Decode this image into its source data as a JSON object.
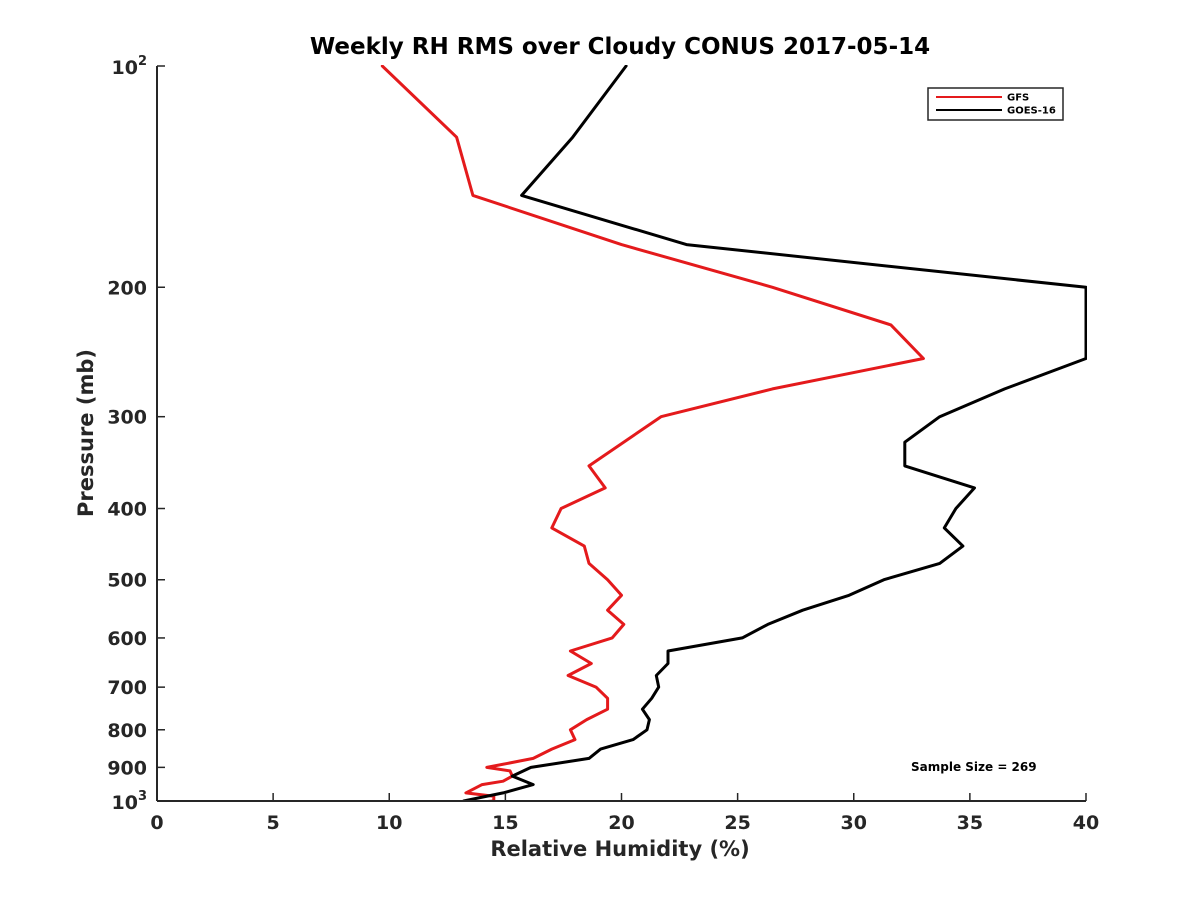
{
  "chart_data": {
    "type": "line",
    "title": "Weekly RH RMS over Cloudy CONUS 2017-05-14",
    "xlabel": "Relative Humidity (%)",
    "ylabel": "Pressure (mb)",
    "xlim": [
      0,
      40
    ],
    "ylim": [
      100,
      1000
    ],
    "yscale": "log",
    "yreversed": true,
    "xticks": [
      0,
      5,
      10,
      15,
      20,
      25,
      30,
      35,
      40
    ],
    "xtick_labels": [
      "0",
      "5",
      "10",
      "15",
      "20",
      "25",
      "30",
      "35",
      "40"
    ],
    "yticks": [
      200,
      300,
      400,
      500,
      600,
      700,
      800,
      900
    ],
    "ytick_labels": [
      "200",
      "300",
      "400",
      "500",
      "600",
      "700",
      "800",
      "900"
    ],
    "ytick_major": {
      "top": {
        "base": "10",
        "exp": "2"
      },
      "bottom": {
        "base": "10",
        "exp": "3"
      }
    },
    "grid": false,
    "legend_position": "top-right",
    "annotation": "Sample Size = 269",
    "series": [
      {
        "name": "GFS",
        "color": "#e41a1c",
        "points": [
          [
            9.7,
            100
          ],
          [
            12.9,
            125
          ],
          [
            13.6,
            150
          ],
          [
            20.0,
            175
          ],
          [
            26.5,
            200
          ],
          [
            31.6,
            225
          ],
          [
            33.0,
            250
          ],
          [
            26.5,
            275
          ],
          [
            21.7,
            300
          ],
          [
            18.6,
            350
          ],
          [
            19.3,
            375
          ],
          [
            17.4,
            400
          ],
          [
            17.0,
            425
          ],
          [
            18.4,
            450
          ],
          [
            18.6,
            475
          ],
          [
            19.4,
            500
          ],
          [
            20.0,
            525
          ],
          [
            19.4,
            550
          ],
          [
            20.1,
            575
          ],
          [
            19.6,
            600
          ],
          [
            17.8,
            625
          ],
          [
            18.7,
            650
          ],
          [
            17.7,
            675
          ],
          [
            18.9,
            700
          ],
          [
            19.4,
            725
          ],
          [
            19.4,
            750
          ],
          [
            18.5,
            775
          ],
          [
            17.8,
            800
          ],
          [
            18.0,
            825
          ],
          [
            17.0,
            850
          ],
          [
            16.2,
            875
          ],
          [
            14.2,
            900
          ],
          [
            15.2,
            910
          ],
          [
            15.3,
            925
          ],
          [
            14.9,
            940
          ],
          [
            14.0,
            950
          ],
          [
            13.3,
            975
          ],
          [
            14.5,
            985
          ],
          [
            14.5,
            1000
          ],
          [
            12.8,
            1010
          ],
          [
            11.6,
            1025
          ],
          [
            10.4,
            1040
          ],
          [
            9.8,
            1050
          ]
        ]
      },
      {
        "name": "GOES-16",
        "color": "#000000",
        "points": [
          [
            20.2,
            100
          ],
          [
            17.9,
            125
          ],
          [
            15.7,
            150
          ],
          [
            22.8,
            175
          ],
          [
            40.0,
            200
          ],
          [
            40.0,
            225
          ],
          [
            40.0,
            250
          ],
          [
            36.5,
            275
          ],
          [
            33.7,
            300
          ],
          [
            32.2,
            325
          ],
          [
            32.2,
            350
          ],
          [
            35.2,
            375
          ],
          [
            34.4,
            400
          ],
          [
            33.9,
            425
          ],
          [
            34.7,
            450
          ],
          [
            33.7,
            475
          ],
          [
            31.3,
            500
          ],
          [
            29.8,
            525
          ],
          [
            27.8,
            550
          ],
          [
            26.3,
            575
          ],
          [
            25.2,
            600
          ],
          [
            22.0,
            625
          ],
          [
            22.0,
            650
          ],
          [
            21.5,
            675
          ],
          [
            21.6,
            700
          ],
          [
            21.3,
            725
          ],
          [
            20.9,
            750
          ],
          [
            21.2,
            775
          ],
          [
            21.1,
            800
          ],
          [
            20.5,
            825
          ],
          [
            19.1,
            850
          ],
          [
            18.6,
            875
          ],
          [
            16.1,
            900
          ],
          [
            15.3,
            925
          ],
          [
            16.2,
            950
          ],
          [
            14.9,
            975
          ],
          [
            13.2,
            1000
          ],
          [
            13.2,
            1010
          ],
          [
            13.0,
            1025
          ],
          [
            10.9,
            1040
          ],
          [
            10.3,
            1050
          ]
        ]
      }
    ]
  }
}
